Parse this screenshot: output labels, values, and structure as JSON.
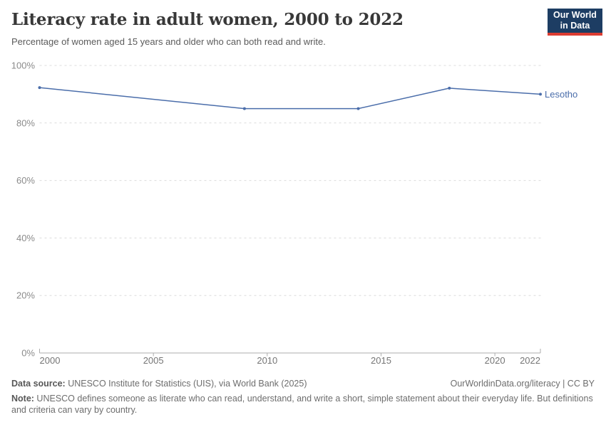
{
  "logo": {
    "line1": "Our World",
    "line2": "in Data",
    "bg_color": "#1d3d63",
    "accent_color": "#dc3c31"
  },
  "chart_data": {
    "type": "line",
    "title": "Literacy rate in adult women, 2000 to 2022",
    "subtitle": "Percentage of women aged 15 years and older who can both read and write.",
    "xlabel": "",
    "ylabel": "",
    "xlim": [
      2000,
      2022
    ],
    "ylim": [
      0,
      100
    ],
    "x_ticks": [
      2000,
      2005,
      2010,
      2015,
      2020,
      2022
    ],
    "y_ticks": [
      0,
      20,
      40,
      60,
      80,
      100
    ],
    "y_tick_suffix": "%",
    "grid": "horizontal-dashed",
    "legend_position": "end-of-line-label",
    "series": [
      {
        "name": "Lesotho",
        "color": "#4a6daa",
        "points": [
          {
            "x": 2000,
            "y": 92.3
          },
          {
            "x": 2009,
            "y": 85.0
          },
          {
            "x": 2014,
            "y": 85.0
          },
          {
            "x": 2018,
            "y": 92.1
          },
          {
            "x": 2022,
            "y": 90.0
          }
        ]
      }
    ],
    "colors": {
      "gridline": "#dcdcdc",
      "axis": "#adadad",
      "y_tick_label": "#8b8b8b",
      "x_tick_label": "#757575"
    }
  },
  "footer": {
    "datasource_label": "Data source:",
    "datasource_text": " UNESCO Institute for Statistics (UIS), via World Bank (2025)",
    "citation": "OurWorldinData.org/literacy | CC BY",
    "note_label": "Note:",
    "note_text": " UNESCO defines someone as literate who can read, understand, and write a short, simple statement about their everyday life. But definitions and criteria can vary by country."
  }
}
